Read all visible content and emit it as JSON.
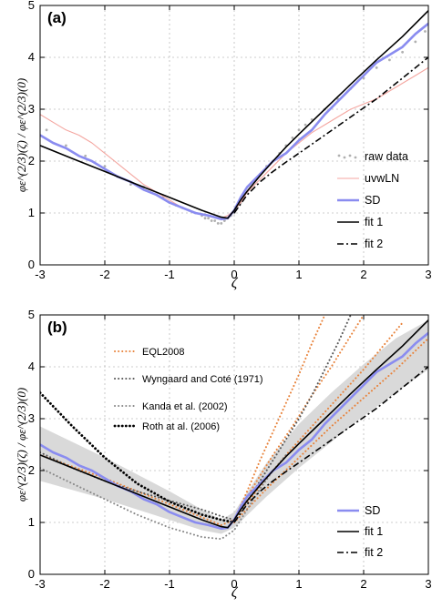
{
  "chart_data": [
    {
      "panel_label": "(a)",
      "type": "line",
      "xlabel": "ζ",
      "ylabel": "φε^(2/3)(ζ) / φε^(2/3)(0)",
      "xlim": [
        -3,
        3
      ],
      "ylim": [
        0,
        5
      ],
      "xticks": [
        "-3",
        "-2",
        "-1",
        "0",
        "1",
        "2",
        "3"
      ],
      "yticks": [
        "0",
        "1",
        "2",
        "3",
        "4",
        "5"
      ],
      "grid": true,
      "legend_position": "right",
      "legend": [
        "raw data",
        "uvwLN",
        "SD",
        "fit 1",
        "fit 2"
      ],
      "series": [
        {
          "name": "raw data",
          "style": "scatter",
          "color": "#b0b0b0",
          "x": [
            -2.9,
            -2.6,
            -2.3,
            -2.0,
            -1.8,
            -1.6,
            -1.4,
            -1.2,
            -1.1,
            -1.0,
            -0.9,
            -0.8,
            -0.7,
            -0.6,
            -0.5,
            -0.45,
            -0.4,
            -0.35,
            -0.3,
            -0.25,
            -0.2,
            -0.15,
            -0.1,
            -0.05,
            0.0,
            0.05,
            0.1,
            0.15,
            0.2,
            0.3,
            0.4,
            0.5,
            0.6,
            0.7,
            0.8,
            0.9,
            1.0,
            1.1,
            1.2,
            1.4,
            1.6,
            1.8,
            2.0,
            2.2,
            2.4,
            2.6,
            2.8,
            2.95
          ],
          "y": [
            2.6,
            2.3,
            2.1,
            1.9,
            1.7,
            1.55,
            1.5,
            1.35,
            1.3,
            1.2,
            1.15,
            1.1,
            1.05,
            1.0,
            0.95,
            0.9,
            0.9,
            0.85,
            0.85,
            0.8,
            0.8,
            0.85,
            0.9,
            0.95,
            1.0,
            1.1,
            1.2,
            1.3,
            1.4,
            1.6,
            1.75,
            1.9,
            2.0,
            2.15,
            2.3,
            2.45,
            2.6,
            2.7,
            2.8,
            3.0,
            3.2,
            3.4,
            3.6,
            3.8,
            3.95,
            4.1,
            4.3,
            4.5
          ]
        },
        {
          "name": "uvwLN",
          "style": "line",
          "color": "#f4a6a0",
          "x": [
            -3.0,
            -2.8,
            -2.6,
            -2.4,
            -2.2,
            -2.0,
            -1.8,
            -1.6,
            -1.4,
            -1.2,
            -1.0,
            -0.8,
            -0.6,
            -0.4,
            -0.2,
            -0.1,
            0.0,
            0.1,
            0.2,
            0.4,
            0.6,
            0.8,
            1.0,
            1.2,
            1.4,
            1.6,
            1.8,
            2.0,
            2.2,
            2.4,
            2.6,
            2.8,
            3.0
          ],
          "y": [
            2.9,
            2.75,
            2.6,
            2.5,
            2.35,
            2.15,
            1.95,
            1.75,
            1.55,
            1.4,
            1.25,
            1.1,
            1.0,
            0.95,
            0.9,
            0.95,
            1.05,
            1.2,
            1.4,
            1.65,
            1.9,
            2.15,
            2.35,
            2.55,
            2.7,
            2.85,
            3.0,
            3.1,
            3.2,
            3.35,
            3.5,
            3.65,
            3.8
          ]
        },
        {
          "name": "SD",
          "style": "line",
          "color": "#8a8cf0",
          "x": [
            -3.0,
            -2.8,
            -2.6,
            -2.4,
            -2.2,
            -2.0,
            -1.8,
            -1.6,
            -1.4,
            -1.2,
            -1.0,
            -0.8,
            -0.6,
            -0.4,
            -0.2,
            -0.1,
            0.0,
            0.1,
            0.2,
            0.4,
            0.6,
            0.8,
            1.0,
            1.2,
            1.4,
            1.6,
            1.8,
            2.0,
            2.2,
            2.4,
            2.6,
            2.8,
            3.0
          ],
          "y": [
            2.5,
            2.35,
            2.25,
            2.1,
            2.0,
            1.85,
            1.7,
            1.6,
            1.45,
            1.35,
            1.2,
            1.1,
            1.0,
            0.95,
            0.88,
            0.9,
            1.05,
            1.3,
            1.5,
            1.75,
            2.0,
            2.15,
            2.4,
            2.6,
            2.9,
            3.15,
            3.4,
            3.65,
            3.9,
            4.05,
            4.2,
            4.45,
            4.65
          ]
        },
        {
          "name": "fit 1",
          "style": "line",
          "color": "#000000",
          "x": [
            -3.0,
            -2.5,
            -2.0,
            -1.5,
            -1.0,
            -0.5,
            -0.2,
            -0.1,
            0.0,
            0.1,
            0.2,
            0.4,
            0.6,
            0.8,
            1.0,
            1.4,
            1.8,
            2.2,
            2.6,
            3.0
          ],
          "y": [
            2.3,
            2.05,
            1.8,
            1.55,
            1.3,
            1.05,
            0.92,
            0.9,
            1.05,
            1.25,
            1.42,
            1.72,
            2.0,
            2.27,
            2.52,
            3.0,
            3.48,
            3.95,
            4.4,
            4.9
          ]
        },
        {
          "name": "fit 2",
          "style": "dashdot",
          "color": "#000000",
          "x": [
            0.0,
            0.2,
            0.4,
            0.6,
            0.8,
            1.0,
            1.4,
            1.8,
            2.2,
            2.6,
            3.0
          ],
          "y": [
            1.0,
            1.35,
            1.6,
            1.8,
            1.98,
            2.15,
            2.5,
            2.85,
            3.2,
            3.6,
            4.0
          ]
        }
      ]
    },
    {
      "panel_label": "(b)",
      "type": "line",
      "xlabel": "ζ",
      "ylabel": "φε^(2/3)(ζ) / φε^(2/3)(0)",
      "xlim": [
        -3,
        3
      ],
      "ylim": [
        0,
        5
      ],
      "xticks": [
        "-3",
        "-2",
        "-1",
        "0",
        "1",
        "2",
        "3"
      ],
      "yticks": [
        "0",
        "1",
        "2",
        "3",
        "4",
        "5"
      ],
      "grid": true,
      "legend_position": "top-left and bottom-right",
      "legend_top": [
        "EQL2008",
        "Wyngaard and Coté (1971)",
        "Kanda et al. (2002)",
        "Roth at al. (2006)"
      ],
      "legend_bottom": [
        "SD",
        "fit 1",
        "fit 2"
      ],
      "band": {
        "color": "#d9d9d9",
        "x": [
          -3.0,
          -2.0,
          -1.0,
          -0.5,
          -0.2,
          0.0,
          0.5,
          1.0,
          1.5,
          2.0,
          2.5,
          3.0
        ],
        "lower": [
          1.8,
          1.45,
          1.05,
          0.85,
          0.78,
          0.9,
          1.5,
          2.05,
          2.55,
          3.05,
          3.5,
          3.95
        ],
        "upper": [
          2.85,
          2.25,
          1.6,
          1.25,
          1.05,
          1.2,
          2.15,
          2.9,
          3.5,
          4.05,
          4.55,
          4.9
        ]
      },
      "series": [
        {
          "name": "EQL2008",
          "style": "dotted",
          "color": "#e8823a",
          "group": 1,
          "x": [
            -3.0,
            -2.0,
            -1.0,
            -0.5,
            -0.2,
            0.0,
            0.2,
            0.4,
            0.6,
            0.8,
            1.0,
            1.2,
            1.4
          ],
          "y": [
            2.3,
            1.85,
            1.35,
            1.1,
            0.95,
            1.05,
            1.6,
            2.2,
            2.75,
            3.3,
            3.85,
            4.45,
            5.0
          ]
        },
        {
          "name": "EQL2008 (2)",
          "style": "dotted",
          "color": "#e8823a",
          "group": 1,
          "x": [
            0.0,
            0.3,
            0.6,
            0.9,
            1.2,
            1.5,
            1.8,
            2.0
          ],
          "y": [
            1.05,
            1.7,
            2.3,
            2.85,
            3.45,
            4.0,
            4.6,
            5.0
          ]
        },
        {
          "name": "EQL2008 (3)",
          "style": "dotted",
          "color": "#e8823a",
          "group": 1,
          "x": [
            0.0,
            0.4,
            0.8,
            1.2,
            1.6,
            2.0,
            2.4,
            2.6
          ],
          "y": [
            1.05,
            1.7,
            2.3,
            2.85,
            3.4,
            3.95,
            4.55,
            4.85
          ]
        },
        {
          "name": "EQL2008 (4)",
          "style": "dotted",
          "color": "#e8823a",
          "group": 1,
          "x": [
            0.0,
            0.5,
            1.0,
            1.5,
            2.0,
            2.5,
            3.0
          ],
          "y": [
            1.0,
            1.65,
            2.25,
            2.85,
            3.4,
            3.95,
            4.55
          ]
        },
        {
          "name": "Wyngaard and Coté (1971)",
          "style": "dotted",
          "color": "#555555",
          "x": [
            -3.0,
            -2.5,
            -2.0,
            -1.5,
            -1.0,
            -0.5,
            -0.2,
            0.0,
            0.2,
            0.4,
            0.6,
            0.8,
            1.0,
            1.2,
            1.4,
            1.6,
            1.8
          ],
          "y": [
            2.35,
            2.05,
            1.8,
            1.6,
            1.42,
            1.25,
            1.12,
            1.05,
            1.4,
            1.8,
            2.2,
            2.6,
            3.0,
            3.45,
            3.95,
            4.45,
            5.0
          ]
        },
        {
          "name": "Kanda et al. (2002)",
          "style": "dotted",
          "color": "#888888",
          "x": [
            -3.0,
            -2.5,
            -2.0,
            -1.5,
            -1.0,
            -0.5,
            -0.2,
            0.0,
            0.2,
            0.4,
            0.6,
            0.8
          ],
          "y": [
            2.05,
            1.75,
            1.45,
            1.15,
            0.9,
            0.72,
            0.68,
            0.85,
            1.25,
            1.65,
            2.0,
            2.3
          ]
        },
        {
          "name": "Roth at al. (2006)",
          "style": "dotted",
          "color": "#000000",
          "x": [
            -3.0,
            -2.5,
            -2.0,
            -1.5,
            -1.0,
            -0.5,
            -0.2,
            0.0
          ],
          "y": [
            3.5,
            2.85,
            2.25,
            1.75,
            1.4,
            1.15,
            1.05,
            1.0
          ]
        },
        {
          "name": "SD",
          "style": "line",
          "color": "#8a8cf0",
          "x": [
            -3.0,
            -2.8,
            -2.6,
            -2.4,
            -2.2,
            -2.0,
            -1.8,
            -1.6,
            -1.4,
            -1.2,
            -1.0,
            -0.8,
            -0.6,
            -0.4,
            -0.2,
            -0.1,
            0.0,
            0.1,
            0.2,
            0.4,
            0.6,
            0.8,
            1.0,
            1.2,
            1.4,
            1.6,
            1.8,
            2.0,
            2.2,
            2.4,
            2.6,
            2.8,
            3.0
          ],
          "y": [
            2.5,
            2.35,
            2.25,
            2.1,
            2.0,
            1.85,
            1.7,
            1.6,
            1.45,
            1.35,
            1.2,
            1.1,
            1.0,
            0.95,
            0.88,
            0.9,
            1.05,
            1.3,
            1.5,
            1.75,
            2.0,
            2.15,
            2.4,
            2.6,
            2.9,
            3.15,
            3.4,
            3.65,
            3.9,
            4.05,
            4.2,
            4.45,
            4.65
          ]
        },
        {
          "name": "fit 1",
          "style": "line",
          "color": "#000000",
          "x": [
            -3.0,
            -2.5,
            -2.0,
            -1.5,
            -1.0,
            -0.5,
            -0.2,
            -0.1,
            0.0,
            0.1,
            0.2,
            0.4,
            0.6,
            0.8,
            1.0,
            1.4,
            1.8,
            2.2,
            2.6,
            3.0
          ],
          "y": [
            2.3,
            2.05,
            1.8,
            1.55,
            1.3,
            1.05,
            0.92,
            0.9,
            1.05,
            1.25,
            1.42,
            1.72,
            2.0,
            2.27,
            2.52,
            3.0,
            3.48,
            3.95,
            4.4,
            4.9
          ]
        },
        {
          "name": "fit 2",
          "style": "dashdot",
          "color": "#000000",
          "x": [
            0.0,
            0.2,
            0.4,
            0.6,
            0.8,
            1.0,
            1.4,
            1.8,
            2.2,
            2.6,
            3.0
          ],
          "y": [
            1.0,
            1.35,
            1.6,
            1.8,
            1.98,
            2.15,
            2.5,
            2.85,
            3.2,
            3.6,
            4.0
          ]
        }
      ]
    }
  ]
}
